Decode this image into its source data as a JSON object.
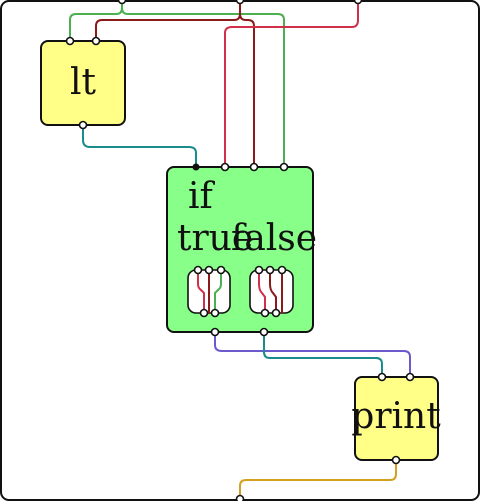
{
  "colors": {
    "lt_fill": "#ffff88",
    "if_fill": "#88ff88",
    "print_fill": "#ffff88",
    "wire_green": "#4caf50",
    "wire_dark_red": "#8b1a1a",
    "wire_crimson": "#d0304a",
    "wire_teal": "#1a8c8c",
    "wire_purple": "#6a5acd",
    "wire_gold": "#d4a020"
  },
  "nodes": {
    "lt": {
      "label": "lt"
    },
    "if": {
      "label": "if",
      "true_label": "true",
      "false_label": "false"
    },
    "print": {
      "label": "print"
    }
  }
}
